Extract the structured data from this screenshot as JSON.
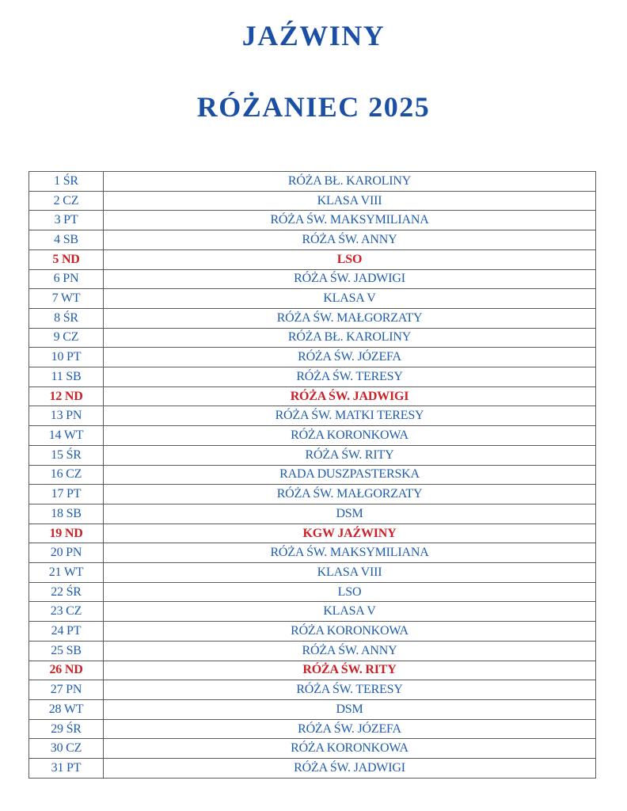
{
  "page": {
    "title": "JAŹWINY",
    "subtitle": "RÓŻANIEC 2025"
  },
  "colors": {
    "heading_blue": "#1b4fa5",
    "text_blue": "#1f5caa",
    "sunday_red": "#cb2026",
    "border_gray": "#5a5a5a"
  },
  "table": {
    "rows": [
      {
        "day": "1 ŚR",
        "assignment": "RÓŻA BŁ. KAROLINY",
        "highlight": false
      },
      {
        "day": "2 CZ",
        "assignment": "KLASA VIII",
        "highlight": false
      },
      {
        "day": "3 PT",
        "assignment": "RÓŻA ŚW. MAKSYMILIANA",
        "highlight": false
      },
      {
        "day": "4 SB",
        "assignment": "RÓŻA ŚW. ANNY",
        "highlight": false
      },
      {
        "day": "5 ND",
        "assignment": "LSO",
        "highlight": true
      },
      {
        "day": "6 PN",
        "assignment": "RÓŻA ŚW. JADWIGI",
        "highlight": false
      },
      {
        "day": "7 WT",
        "assignment": "KLASA V",
        "highlight": false
      },
      {
        "day": "8 ŚR",
        "assignment": "RÓŻA ŚW. MAŁGORZATY",
        "highlight": false
      },
      {
        "day": "9 CZ",
        "assignment": "RÓŻA BŁ. KAROLINY",
        "highlight": false
      },
      {
        "day": "10 PT",
        "assignment": "RÓŻA ŚW. JÓZEFA",
        "highlight": false
      },
      {
        "day": "11 SB",
        "assignment": "RÓŻA ŚW. TERESY",
        "highlight": false
      },
      {
        "day": "12 ND",
        "assignment": "RÓŻA ŚW. JADWIGI",
        "highlight": true
      },
      {
        "day": "13 PN",
        "assignment": "RÓŻA ŚW. MATKI TERESY",
        "highlight": false
      },
      {
        "day": "14 WT",
        "assignment": "RÓŻA KORONKOWA",
        "highlight": false
      },
      {
        "day": "15 ŚR",
        "assignment": "RÓŻA ŚW. RITY",
        "highlight": false
      },
      {
        "day": "16 CZ",
        "assignment": "RADA DUSZPASTERSKA",
        "highlight": false
      },
      {
        "day": "17 PT",
        "assignment": "RÓŻA ŚW. MAŁGORZATY",
        "highlight": false
      },
      {
        "day": "18 SB",
        "assignment": "DSM",
        "highlight": false
      },
      {
        "day": "19 ND",
        "assignment": "KGW JAŹWINY",
        "highlight": true
      },
      {
        "day": "20 PN",
        "assignment": "RÓŻA ŚW. MAKSYMILIANA",
        "highlight": false
      },
      {
        "day": "21 WT",
        "assignment": "KLASA VIII",
        "highlight": false
      },
      {
        "day": "22 ŚR",
        "assignment": "LSO",
        "highlight": false
      },
      {
        "day": "23 CZ",
        "assignment": "KLASA V",
        "highlight": false
      },
      {
        "day": "24 PT",
        "assignment": "RÓŻA KORONKOWA",
        "highlight": false
      },
      {
        "day": "25 SB",
        "assignment": "RÓŻA ŚW. ANNY",
        "highlight": false
      },
      {
        "day": "26 ND",
        "assignment": "RÓŻA ŚW. RITY",
        "highlight": true
      },
      {
        "day": "27 PN",
        "assignment": "RÓŻA ŚW. TERESY",
        "highlight": false
      },
      {
        "day": "28 WT",
        "assignment": "DSM",
        "highlight": false
      },
      {
        "day": "29 ŚR",
        "assignment": "RÓŻA ŚW. JÓZEFA",
        "highlight": false
      },
      {
        "day": "30 CZ",
        "assignment": "RÓŻA KORONKOWA",
        "highlight": false
      },
      {
        "day": "31 PT",
        "assignment": "RÓŻA ŚW. JADWIGI",
        "highlight": false
      }
    ]
  }
}
